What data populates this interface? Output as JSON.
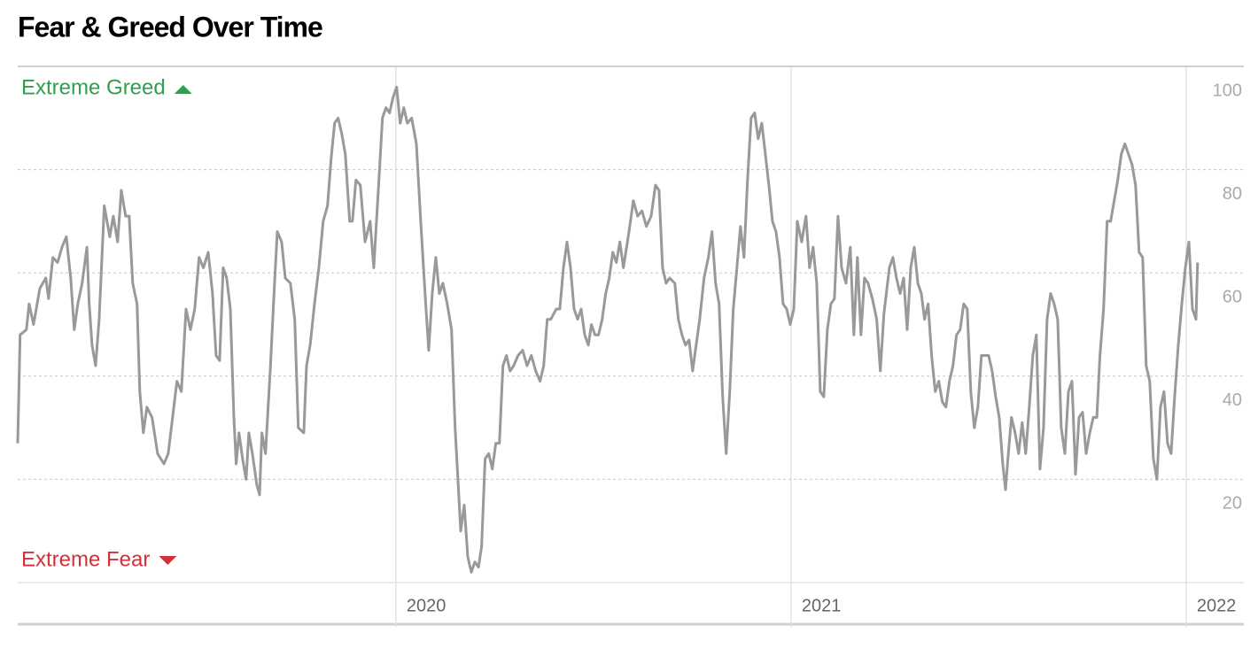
{
  "chart_data": {
    "type": "line",
    "title": "Fear & Greed Over Time",
    "annotations": {
      "top": "Extreme Greed",
      "bottom": "Extreme Fear"
    },
    "color": "#999999",
    "annotation_colors": {
      "top": "#2e9e4f",
      "bottom": "#d0313a"
    },
    "xlim": [
      2019.043,
      2022.146
    ],
    "xticks": [
      2020,
      2021,
      2022
    ],
    "ylim": [
      0,
      100
    ],
    "yticks": [
      20,
      40,
      60,
      80,
      100
    ],
    "grid": true,
    "x": [
      2019.043,
      2019.049,
      2019.065,
      2019.072,
      2019.083,
      2019.099,
      2019.114,
      2019.121,
      2019.132,
      2019.144,
      2019.155,
      2019.166,
      2019.177,
      2019.186,
      2019.195,
      2019.206,
      2019.218,
      2019.224,
      2019.231,
      2019.24,
      2019.249,
      2019.262,
      2019.276,
      2019.285,
      2019.296,
      2019.305,
      2019.316,
      2019.325,
      2019.334,
      2019.345,
      2019.352,
      2019.361,
      2019.37,
      2019.383,
      2019.397,
      2019.413,
      2019.424,
      2019.435,
      2019.446,
      2019.457,
      2019.469,
      2019.48,
      2019.491,
      2019.502,
      2019.513,
      2019.525,
      2019.536,
      2019.545,
      2019.554,
      2019.563,
      2019.572,
      2019.581,
      2019.59,
      2019.596,
      2019.603,
      2019.612,
      2019.621,
      2019.628,
      2019.637,
      2019.648,
      2019.655,
      2019.661,
      2019.67,
      2019.682,
      2019.693,
      2019.7,
      2019.711,
      2019.72,
      2019.733,
      2019.744,
      2019.753,
      2019.767,
      2019.774,
      2019.783,
      2019.794,
      2019.805,
      2019.816,
      2019.827,
      2019.836,
      2019.845,
      2019.854,
      2019.863,
      2019.872,
      2019.883,
      2019.89,
      2019.899,
      2019.91,
      2019.922,
      2019.935,
      2019.944,
      2019.957,
      2019.966,
      2019.975,
      2019.984,
      2019.993,
      2020.002,
      2020.011,
      2020.02,
      2020.029,
      2020.04,
      2020.052,
      2020.063,
      2020.074,
      2020.083,
      2020.092,
      2020.101,
      2020.11,
      2020.119,
      2020.13,
      2020.141,
      2020.15,
      2020.157,
      2020.164,
      2020.173,
      2020.182,
      2020.191,
      2020.2,
      2020.209,
      2020.217,
      2020.226,
      2020.235,
      2020.244,
      2020.253,
      2020.262,
      2020.271,
      2020.28,
      2020.289,
      2020.298,
      2020.309,
      2020.321,
      2020.332,
      2020.343,
      2020.354,
      2020.365,
      2020.374,
      2020.383,
      2020.392,
      2020.406,
      2020.415,
      2020.424,
      2020.433,
      2020.442,
      2020.451,
      2020.46,
      2020.469,
      2020.478,
      2020.487,
      2020.495,
      2020.504,
      2020.513,
      2020.522,
      2020.531,
      2020.54,
      2020.549,
      2020.558,
      2020.567,
      2020.576,
      2020.59,
      2020.601,
      2020.612,
      2020.623,
      2020.634,
      2020.646,
      2020.657,
      2020.666,
      2020.675,
      2020.684,
      2020.693,
      2020.706,
      2020.715,
      2020.724,
      2020.733,
      2020.742,
      2020.751,
      2020.76,
      2020.769,
      2020.78,
      2020.791,
      2020.8,
      2020.809,
      2020.818,
      2020.827,
      2020.836,
      2020.845,
      2020.854,
      2020.863,
      2020.872,
      2020.881,
      2020.89,
      2020.899,
      2020.908,
      2020.917,
      2020.926,
      2020.935,
      2020.944,
      2020.953,
      2020.962,
      2020.971,
      2020.98,
      2020.989,
      2020.998,
      2021.007,
      2021.016,
      2021.027,
      2021.038,
      2021.047,
      2021.056,
      2021.065,
      2021.074,
      2021.083,
      2021.092,
      2021.101,
      2021.11,
      2021.119,
      2021.128,
      2021.139,
      2021.15,
      2021.159,
      2021.168,
      2021.177,
      2021.186,
      2021.195,
      2021.206,
      2021.217,
      2021.226,
      2021.235,
      2021.249,
      2021.258,
      2021.267,
      2021.276,
      2021.285,
      2021.294,
      2021.303,
      2021.312,
      2021.321,
      2021.33,
      2021.338,
      2021.347,
      2021.356,
      2021.365,
      2021.374,
      2021.383,
      2021.392,
      2021.401,
      2021.41,
      2021.419,
      2021.428,
      2021.437,
      2021.446,
      2021.455,
      2021.464,
      2021.473,
      2021.482,
      2021.491,
      2021.5,
      2021.509,
      2021.518,
      2021.527,
      2021.536,
      2021.543,
      2021.549,
      2021.558,
      2021.567,
      2021.576,
      2021.585,
      2021.594,
      2021.603,
      2021.612,
      2021.621,
      2021.63,
      2021.639,
      2021.648,
      2021.657,
      2021.666,
      2021.675,
      2021.684,
      2021.693,
      2021.702,
      2021.711,
      2021.72,
      2021.729,
      2021.738,
      2021.747,
      2021.756,
      2021.765,
      2021.774,
      2021.782,
      2021.791,
      2021.8,
      2021.809,
      2021.818,
      2021.827,
      2021.836,
      2021.845,
      2021.854,
      2021.863,
      2021.872,
      2021.881,
      2021.89,
      2021.899,
      2021.908,
      2021.917,
      2021.926,
      2021.935,
      2021.944,
      2021.953,
      2021.962,
      2021.971,
      2021.98,
      2021.989,
      2021.998,
      2022.007,
      2022.016,
      2022.025,
      2022.029
    ],
    "values": [
      27,
      48,
      49,
      54,
      50,
      57,
      59,
      55,
      63,
      62,
      65,
      67,
      59,
      49,
      54,
      58,
      65,
      54,
      46,
      42,
      51,
      73,
      67,
      71,
      66,
      76,
      71,
      71,
      58,
      54,
      37,
      29,
      34,
      32,
      25,
      23,
      25,
      32,
      39,
      37,
      53,
      49,
      53,
      63,
      61,
      64,
      56,
      44,
      43,
      61,
      59,
      53,
      32,
      23,
      29,
      24,
      20,
      29,
      25,
      19,
      17,
      29,
      25,
      41,
      58,
      68,
      66,
      59,
      58,
      51,
      30,
      29,
      42,
      46,
      54,
      61,
      70,
      73,
      82,
      89,
      90,
      87,
      83,
      70,
      70,
      78,
      77,
      66,
      70,
      61,
      78,
      90,
      92,
      91,
      94,
      96,
      89,
      92,
      89,
      90,
      85,
      70,
      56,
      45,
      56,
      63,
      56,
      58,
      54,
      49,
      30,
      20,
      10,
      15,
      5,
      2,
      4,
      3,
      7,
      24,
      25,
      22,
      27,
      27,
      42,
      44,
      41,
      42,
      44,
      45,
      42,
      44,
      41,
      39,
      42,
      51,
      51,
      53,
      53,
      61,
      66,
      61,
      53,
      51,
      53,
      48,
      46,
      50,
      48,
      48,
      51,
      56,
      59,
      64,
      62,
      66,
      61,
      68,
      74,
      71,
      72,
      69,
      71,
      77,
      76,
      61,
      58,
      59,
      58,
      51,
      48,
      46,
      47,
      41,
      46,
      51,
      59,
      63,
      68,
      58,
      54,
      36,
      25,
      37,
      53,
      61,
      69,
      63,
      78,
      90,
      91,
      86,
      89,
      83,
      77,
      70,
      68,
      63,
      54,
      53,
      50,
      53,
      70,
      66,
      71,
      61,
      65,
      58,
      37,
      36,
      49,
      54,
      55,
      71,
      61,
      58,
      65,
      48,
      63,
      48,
      59,
      58,
      55,
      51,
      41,
      52,
      61,
      63,
      59,
      56,
      59,
      49,
      61,
      65,
      58,
      56,
      51,
      54,
      44,
      37,
      39,
      35,
      34,
      39,
      42,
      48,
      49,
      54,
      53,
      37,
      30,
      34,
      44,
      44,
      44,
      41,
      36,
      32,
      23,
      18,
      24,
      32,
      29,
      25,
      31,
      25,
      34,
      44,
      48,
      22,
      30,
      51,
      56,
      54,
      51,
      30,
      25,
      37,
      39,
      21,
      32,
      33,
      25,
      29,
      32,
      32,
      44,
      53,
      70,
      70,
      74,
      78,
      83,
      85,
      83,
      81,
      77,
      64,
      63,
      42,
      39,
      24,
      20,
      34,
      37,
      27,
      25,
      36,
      46,
      54,
      61,
      66,
      53,
      51,
      62
    ]
  }
}
